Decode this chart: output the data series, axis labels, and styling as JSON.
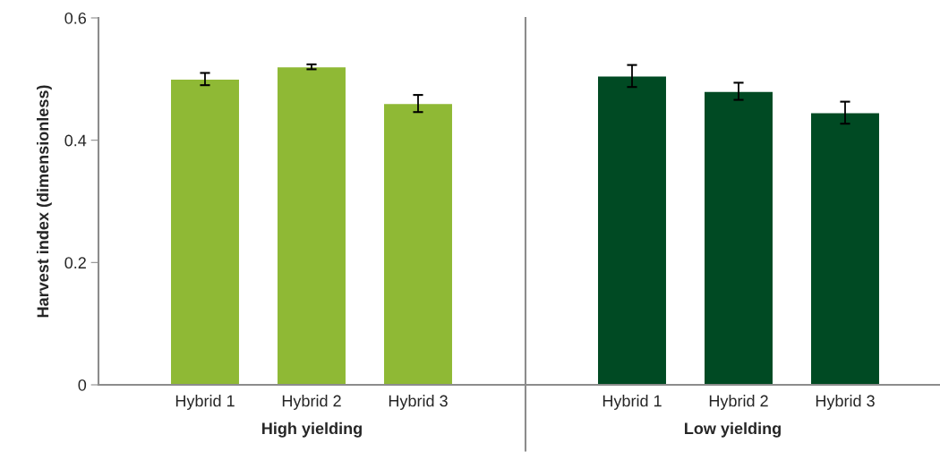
{
  "chart_data": [
    {
      "type": "bar",
      "ylabel": "Harvest index (dimensionless)",
      "xlabel": "High yielding",
      "categories": [
        "Hybrid 1",
        "Hybrid 2",
        "Hybrid 3"
      ],
      "values": [
        0.5,
        0.52,
        0.46
      ],
      "errors": [
        0.01,
        0.004,
        0.014
      ],
      "color": "#8fb935",
      "ylim": [
        0,
        0.6
      ],
      "yticks": [
        0,
        0.2,
        0.4,
        0.6
      ],
      "grid": false,
      "legend": false
    },
    {
      "type": "bar",
      "xlabel": "Low yielding",
      "categories": [
        "Hybrid 1",
        "Hybrid 2",
        "Hybrid 3"
      ],
      "values": [
        0.505,
        0.48,
        0.445
      ],
      "errors": [
        0.018,
        0.014,
        0.018
      ],
      "color": "#004a23",
      "ylim": [
        0,
        0.6
      ],
      "tick_labels": "x",
      "grid": false,
      "legend": false
    }
  ]
}
